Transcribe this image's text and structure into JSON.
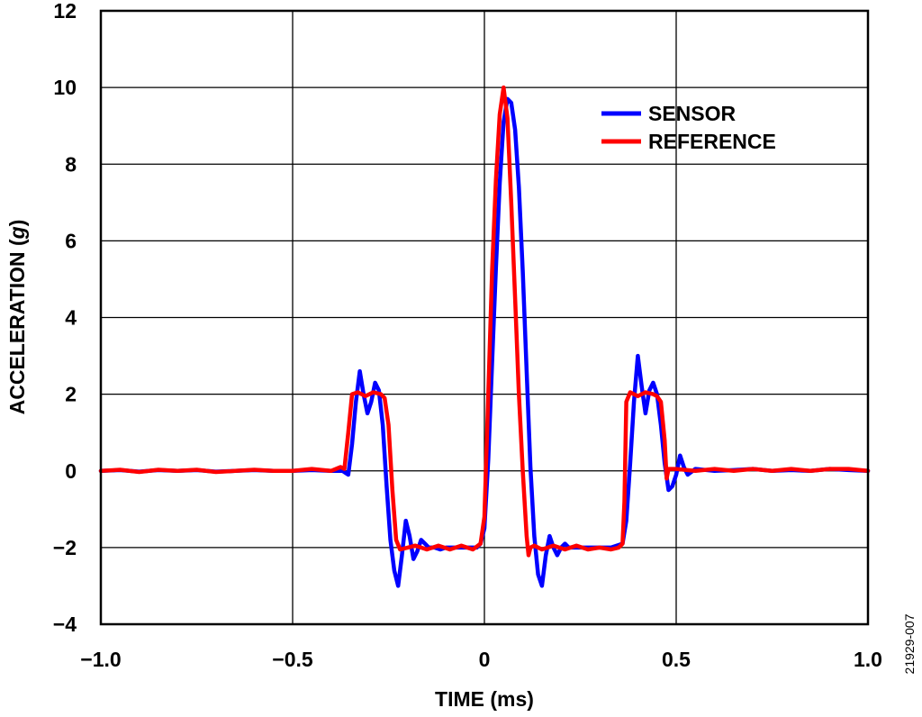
{
  "figure_id": "21929-007",
  "colors": {
    "sensor": "#0000ff",
    "reference": "#ff0000",
    "grid": "#000000"
  },
  "chart_data": {
    "type": "line",
    "xlabel": "TIME (ms)",
    "ylabel_main": "ACCELERATION (",
    "ylabel_italic": "g",
    "ylabel_end": ")",
    "xlim": [
      -1.0,
      1.0
    ],
    "ylim": [
      -4,
      12
    ],
    "x_ticks": [
      -1.0,
      -0.5,
      0,
      0.5,
      1.0
    ],
    "x_tick_labels": [
      "−1.0",
      "−0.5",
      "0",
      "0.5",
      "1.0"
    ],
    "y_ticks": [
      -4,
      -2,
      0,
      2,
      4,
      6,
      8,
      10,
      12
    ],
    "y_tick_labels": [
      "−4",
      "−2",
      "0",
      "2",
      "4",
      "6",
      "8",
      "10",
      "12"
    ],
    "grid": true,
    "legend_position": "top-right",
    "series": [
      {
        "name": "SENSOR",
        "color": "#0000ff",
        "x": [
          -1.0,
          -0.95,
          -0.9,
          -0.85,
          -0.8,
          -0.75,
          -0.7,
          -0.65,
          -0.6,
          -0.55,
          -0.5,
          -0.45,
          -0.4,
          -0.37,
          -0.355,
          -0.345,
          -0.335,
          -0.325,
          -0.315,
          -0.305,
          -0.295,
          -0.285,
          -0.275,
          -0.265,
          -0.255,
          -0.245,
          -0.235,
          -0.225,
          -0.215,
          -0.205,
          -0.195,
          -0.185,
          -0.175,
          -0.165,
          -0.155,
          -0.145,
          -0.13,
          -0.115,
          -0.1,
          -0.08,
          -0.06,
          -0.04,
          -0.02,
          -0.01,
          0.0,
          0.01,
          0.02,
          0.03,
          0.04,
          0.05,
          0.06,
          0.07,
          0.08,
          0.09,
          0.1,
          0.11,
          0.12,
          0.13,
          0.14,
          0.15,
          0.16,
          0.17,
          0.18,
          0.19,
          0.2,
          0.21,
          0.22,
          0.23,
          0.24,
          0.26,
          0.28,
          0.3,
          0.33,
          0.36,
          0.37,
          0.38,
          0.39,
          0.4,
          0.41,
          0.42,
          0.43,
          0.44,
          0.45,
          0.46,
          0.47,
          0.48,
          0.49,
          0.5,
          0.51,
          0.52,
          0.53,
          0.55,
          0.6,
          0.65,
          0.7,
          0.75,
          0.8,
          0.85,
          0.9,
          0.95,
          1.0
        ],
        "y": [
          0.0,
          0.02,
          -0.02,
          0.02,
          0.0,
          0.02,
          -0.02,
          0.0,
          0.02,
          0.0,
          0.0,
          0.02,
          0.0,
          0.0,
          -0.1,
          0.7,
          1.8,
          2.6,
          2.0,
          1.5,
          1.8,
          2.3,
          2.1,
          1.2,
          -0.4,
          -1.8,
          -2.6,
          -3.0,
          -2.2,
          -1.3,
          -1.7,
          -2.3,
          -2.1,
          -1.8,
          -1.9,
          -2.0,
          -2.0,
          -2.05,
          -2.0,
          -2.0,
          -2.0,
          -2.0,
          -2.0,
          -1.9,
          -1.5,
          0.3,
          2.8,
          5.3,
          7.5,
          9.1,
          9.7,
          9.6,
          8.9,
          7.4,
          5.2,
          2.6,
          0.1,
          -1.7,
          -2.7,
          -3.0,
          -2.2,
          -1.7,
          -2.0,
          -2.2,
          -2.0,
          -1.9,
          -2.0,
          -2.0,
          -2.0,
          -2.0,
          -2.0,
          -2.0,
          -2.0,
          -1.9,
          -1.3,
          0.2,
          1.8,
          3.0,
          2.2,
          1.5,
          2.1,
          2.3,
          2.0,
          1.2,
          0.2,
          -0.5,
          -0.4,
          -0.1,
          0.4,
          0.1,
          -0.1,
          0.05,
          0.0,
          0.02,
          0.05,
          0.0,
          0.02,
          0.0,
          0.05,
          0.02,
          0.0
        ]
      },
      {
        "name": "REFERENCE",
        "color": "#ff0000",
        "x": [
          -1.0,
          -0.95,
          -0.9,
          -0.85,
          -0.8,
          -0.75,
          -0.7,
          -0.65,
          -0.6,
          -0.55,
          -0.5,
          -0.45,
          -0.4,
          -0.375,
          -0.365,
          -0.355,
          -0.345,
          -0.33,
          -0.31,
          -0.29,
          -0.27,
          -0.26,
          -0.25,
          -0.24,
          -0.23,
          -0.22,
          -0.2,
          -0.18,
          -0.15,
          -0.12,
          -0.09,
          -0.06,
          -0.03,
          -0.01,
          0.0,
          0.01,
          0.02,
          0.03,
          0.04,
          0.05,
          0.06,
          0.07,
          0.08,
          0.09,
          0.1,
          0.11,
          0.115,
          0.12,
          0.13,
          0.15,
          0.18,
          0.21,
          0.24,
          0.27,
          0.3,
          0.33,
          0.35,
          0.36,
          0.365,
          0.37,
          0.38,
          0.4,
          0.42,
          0.44,
          0.45,
          0.46,
          0.47,
          0.475,
          0.48,
          0.5,
          0.55,
          0.6,
          0.65,
          0.7,
          0.75,
          0.8,
          0.85,
          0.9,
          0.95,
          1.0
        ],
        "y": [
          0.0,
          0.03,
          -0.03,
          0.03,
          0.0,
          0.03,
          -0.03,
          0.0,
          0.03,
          0.0,
          0.0,
          0.05,
          0.0,
          0.1,
          0.05,
          1.0,
          2.0,
          2.05,
          1.95,
          2.05,
          2.0,
          1.9,
          1.2,
          -0.5,
          -1.8,
          -2.05,
          -2.0,
          -1.95,
          -2.05,
          -1.95,
          -2.05,
          -1.95,
          -2.05,
          -1.9,
          -1.2,
          2.0,
          5.2,
          7.6,
          9.3,
          10.0,
          9.2,
          7.0,
          4.5,
          2.0,
          0.0,
          -1.7,
          -2.2,
          -2.0,
          -1.95,
          -2.05,
          -1.95,
          -2.05,
          -1.95,
          -2.05,
          -2.0,
          -2.05,
          -2.0,
          -1.9,
          -0.8,
          1.8,
          2.05,
          1.95,
          2.05,
          2.0,
          1.95,
          1.8,
          0.8,
          -0.2,
          0.05,
          0.05,
          0.0,
          0.05,
          0.0,
          0.05,
          0.0,
          0.05,
          0.0,
          0.05,
          0.05,
          0.0
        ]
      }
    ]
  }
}
